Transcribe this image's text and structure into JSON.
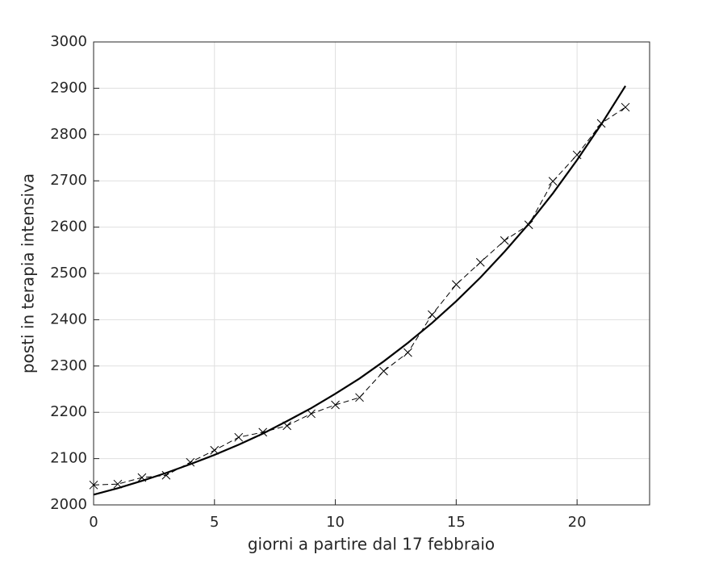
{
  "chart_data": {
    "type": "line",
    "x_label": "giorni a partire dal 17 febbraio",
    "y_label": "posti in terapia intensiva",
    "x": [
      0,
      1,
      2,
      3,
      4,
      5,
      6,
      7,
      8,
      9,
      10,
      11,
      12,
      13,
      14,
      15,
      16,
      17,
      18,
      19,
      20,
      21,
      22
    ],
    "series": [
      {
        "color": "#000000",
        "dash": true,
        "marker": "x",
        "values": [
          2043,
          2045,
          2059,
          2064,
          2092,
          2118,
          2146,
          2157,
          2171,
          2197,
          2216,
          2232,
          2289,
          2329,
          2411,
          2476,
          2524,
          2571,
          2605,
          2699,
          2756,
          2824,
          2859
        ]
      },
      {
        "color": "#000000",
        "dash": false,
        "values": [
          2022,
          2036,
          2052,
          2069,
          2088,
          2108,
          2130,
          2154,
          2181,
          2209,
          2240,
          2273,
          2310,
          2350,
          2393,
          2440,
          2491,
          2547,
          2607,
          2673,
          2745,
          2822,
          2905
        ]
      }
    ],
    "xlim": [
      0,
      23
    ],
    "xticks": [
      0,
      5,
      10,
      15,
      20
    ],
    "ylim": [
      2000,
      3000
    ],
    "yticks": [
      2000,
      2100,
      2200,
      2300,
      2400,
      2500,
      2600,
      2700,
      2800,
      2900,
      3000
    ],
    "grid": true
  }
}
